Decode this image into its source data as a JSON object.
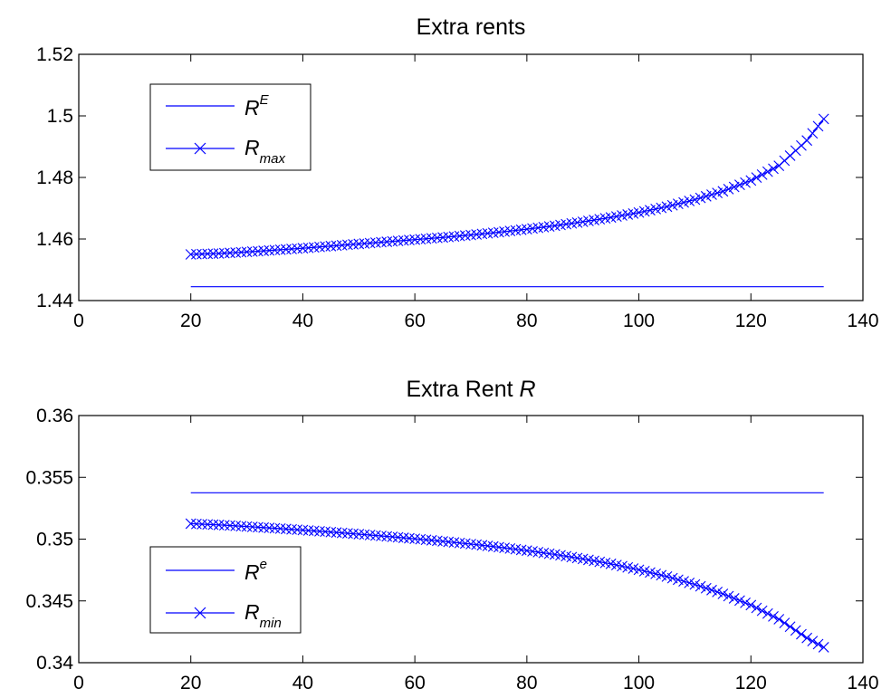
{
  "figure": {
    "background": "#ffffff",
    "axes_color": "#000000",
    "series_color": "#0000ff"
  },
  "chart_data": [
    {
      "type": "line",
      "title": "Extra rents",
      "xlabel": "",
      "ylabel": "",
      "xlim": [
        0,
        140
      ],
      "ylim": [
        1.44,
        1.52
      ],
      "xticks": [
        "0",
        "20",
        "40",
        "60",
        "80",
        "100",
        "120",
        "140"
      ],
      "yticks": [
        "1.44",
        "1.46",
        "1.48",
        "1.5",
        "1.52"
      ],
      "grid": false,
      "legend_position": "top-left",
      "series": [
        {
          "name": "R^E",
          "legend_base": "R",
          "legend_sup": "E",
          "legend_sub": "",
          "marker": "none",
          "color": "#0000ff",
          "x": [
            20,
            133
          ],
          "y": [
            1.4445,
            1.4445
          ]
        },
        {
          "name": "R_max",
          "legend_base": "R",
          "legend_sup": "",
          "legend_sub": "max",
          "marker": "x",
          "color": "#0000ff",
          "x": [
            20,
            25,
            30,
            35,
            40,
            45,
            50,
            55,
            60,
            65,
            70,
            75,
            80,
            85,
            90,
            95,
            100,
            105,
            110,
            115,
            120,
            125,
            130,
            133
          ],
          "y": [
            1.455,
            1.4553,
            1.4558,
            1.4564,
            1.457,
            1.4577,
            1.4584,
            1.4591,
            1.4598,
            1.4605,
            1.4613,
            1.4622,
            1.4632,
            1.4643,
            1.4656,
            1.467,
            1.4686,
            1.4705,
            1.4728,
            1.4755,
            1.479,
            1.4838,
            1.492,
            1.499
          ]
        }
      ]
    },
    {
      "type": "line",
      "title_text": "Extra Rent ",
      "title_italic": "R",
      "xlabel": "",
      "ylabel": "",
      "xlim": [
        0,
        140
      ],
      "ylim": [
        0.34,
        0.36
      ],
      "xticks": [
        "0",
        "20",
        "40",
        "60",
        "80",
        "100",
        "120",
        "140"
      ],
      "yticks": [
        "0.34",
        "0.345",
        "0.35",
        "0.355",
        "0.36"
      ],
      "grid": false,
      "legend_position": "bottom-left",
      "series": [
        {
          "name": "R^e",
          "legend_base": "R",
          "legend_sup": "e",
          "legend_sub": "",
          "marker": "none",
          "color": "#0000ff",
          "x": [
            20,
            133
          ],
          "y": [
            0.35375,
            0.35375
          ]
        },
        {
          "name": "R_min",
          "legend_base": "R",
          "legend_sup": "",
          "legend_sub": "min",
          "marker": "x",
          "color": "#0000ff",
          "x": [
            20,
            25,
            30,
            35,
            40,
            45,
            50,
            55,
            60,
            65,
            70,
            75,
            80,
            85,
            90,
            95,
            100,
            105,
            110,
            115,
            120,
            125,
            130,
            133
          ],
          "y": [
            0.35125,
            0.35115,
            0.35102,
            0.35088,
            0.35073,
            0.35057,
            0.3504,
            0.35022,
            0.35003,
            0.34982,
            0.3496,
            0.34935,
            0.34907,
            0.34876,
            0.3484,
            0.348,
            0.34752,
            0.34697,
            0.34633,
            0.34557,
            0.34466,
            0.34352,
            0.342,
            0.34125
          ]
        }
      ]
    }
  ]
}
